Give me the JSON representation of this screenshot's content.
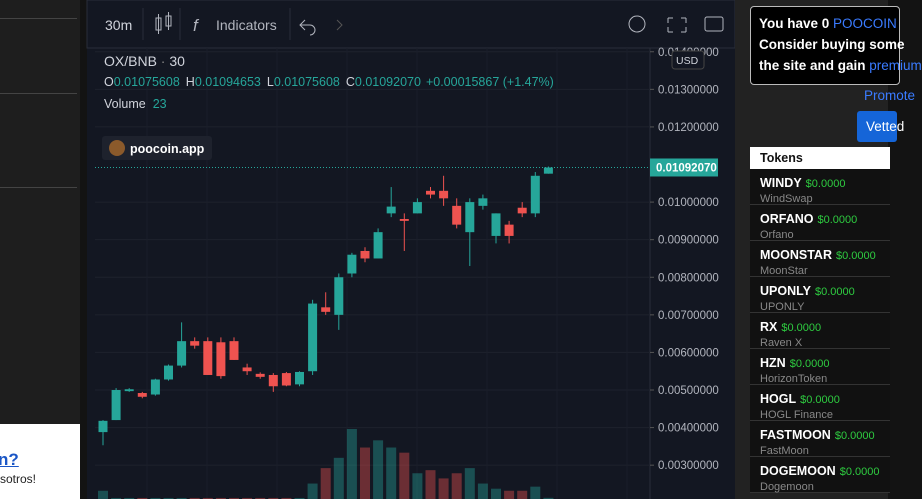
{
  "left": {
    "link": "n?",
    "text": "sotros!"
  },
  "toolbar": {
    "interval": "30m",
    "indicators": "Indicators"
  },
  "chart_data": {
    "type": "candlestick",
    "symbol": "OX/BNB",
    "interval": "30",
    "legend": [
      {
        "key": "O",
        "value": "0.01075608"
      },
      {
        "key": "H",
        "value": "0.01094653"
      },
      {
        "key": "L",
        "value": "0.01075608"
      },
      {
        "key": "C",
        "value": "0.01092070"
      }
    ],
    "change": "+0.00015867 (+1.47%)",
    "volume_label": "Volume",
    "volume_value": 23,
    "watermark": "poocoin.app",
    "currency": "USD",
    "up_color": "#26a69a",
    "down_color": "#ef5350",
    "ylim": [
      0.0021,
      0.0141
    ],
    "yticks": [
      {
        "value": 0.014,
        "label": "0.01400000"
      },
      {
        "value": 0.013,
        "label": "0.01300000"
      },
      {
        "value": 0.012,
        "label": "0.01200000"
      },
      {
        "value": 0.01,
        "label": "0.01000000"
      },
      {
        "value": 0.009,
        "label": "0.00900000"
      },
      {
        "value": 0.008,
        "label": "0.00800000"
      },
      {
        "value": 0.007,
        "label": "0.00700000"
      },
      {
        "value": 0.006,
        "label": "0.00600000"
      },
      {
        "value": 0.005,
        "label": "0.00500000"
      },
      {
        "value": 0.004,
        "label": "0.00400000"
      },
      {
        "value": 0.003,
        "label": "0.00300000"
      }
    ],
    "last_price": {
      "value": 0.0109207,
      "label": "0.01092070"
    },
    "open": [
      0.00388,
      0.0042,
      0.00497,
      0.00492,
      0.00488,
      0.00528,
      0.00565,
      0.0063,
      0.0063,
      0.00627,
      0.0063,
      0.0056,
      0.00543,
      0.0054,
      0.00545,
      0.00515,
      0.0055,
      0.0072,
      0.007,
      0.0081,
      0.0087,
      0.0085,
      0.0097,
      0.00955,
      0.0097,
      0.0103,
      0.0103,
      0.0099,
      0.0092,
      0.0099,
      0.0091,
      0.0094,
      0.00985,
      0.0097,
      0.01075608
    ],
    "high": [
      0.0042,
      0.00505,
      0.00505,
      0.00495,
      0.0053,
      0.00568,
      0.0068,
      0.0064,
      0.0064,
      0.0064,
      0.0064,
      0.0057,
      0.00547,
      0.00545,
      0.00548,
      0.0055,
      0.0074,
      0.0076,
      0.0081,
      0.00865,
      0.0088,
      0.0093,
      0.0104,
      0.0097,
      0.0101,
      0.0104,
      0.0107,
      0.0101,
      0.0101,
      0.0102,
      0.0097,
      0.0095,
      0.01,
      0.0108,
      0.01094653
    ],
    "low": [
      0.00353,
      0.0042,
      0.00495,
      0.00478,
      0.00485,
      0.00525,
      0.0056,
      0.0061,
      0.0054,
      0.0053,
      0.0058,
      0.0054,
      0.0053,
      0.00495,
      0.0051,
      0.0051,
      0.0054,
      0.007,
      0.0066,
      0.008,
      0.0084,
      0.0085,
      0.0096,
      0.0087,
      0.0097,
      0.0101,
      0.0099,
      0.0093,
      0.0083,
      0.0098,
      0.0089,
      0.0089,
      0.0096,
      0.0096,
      0.01075608
    ],
    "close": [
      0.00418,
      0.005,
      0.00502,
      0.00482,
      0.00528,
      0.00565,
      0.0063,
      0.00618,
      0.0054,
      0.00537,
      0.0058,
      0.0055,
      0.00535,
      0.0051,
      0.00512,
      0.00548,
      0.0073,
      0.00708,
      0.008,
      0.0086,
      0.0085,
      0.0092,
      0.00988,
      0.0095,
      0.01,
      0.0102,
      0.0101,
      0.0094,
      0.01,
      0.0101,
      0.0097,
      0.0091,
      0.0097,
      0.0107,
      0.0109207
    ],
    "volume": [
      160,
      20,
      20,
      20,
      20,
      20,
      20,
      20,
      20,
      20,
      20,
      20,
      20,
      20,
      20,
      20,
      300,
      600,
      800,
      1360,
      1000,
      1140,
      1000,
      900,
      500,
      560,
      400,
      500,
      600,
      300,
      200,
      160,
      160,
      240,
      23
    ]
  },
  "sidebar": {
    "notice": {
      "line1": "You have 0 ",
      "token": "POOCOIN",
      "line2": "Consider buying some",
      "line3": "the site and gain ",
      "link": "premium"
    },
    "promote": "Promote",
    "button": "Vetted",
    "tokens_title": "Tokens",
    "tokens": [
      {
        "symbol": "WINDY",
        "price": "$0.0000",
        "name": "WindSwap"
      },
      {
        "symbol": "ORFANO",
        "price": "$0.0000",
        "name": "Orfano"
      },
      {
        "symbol": "MOONSTAR",
        "price": "$0.0000",
        "name": "MoonStar"
      },
      {
        "symbol": "UPONLY",
        "price": "$0.0000",
        "name": "UPONLY"
      },
      {
        "symbol": "RX",
        "price": "$0.0000",
        "name": "Raven X"
      },
      {
        "symbol": "HZN",
        "price": "$0.0000",
        "name": "HorizonToken"
      },
      {
        "symbol": "HOGL",
        "price": "$0.0000",
        "name": "HOGL Finance"
      },
      {
        "symbol": "FASTMOON",
        "price": "$0.0000",
        "name": "FastMoon"
      },
      {
        "symbol": "DOGEMOON",
        "price": "$0.0000",
        "name": "Dogemoon"
      }
    ]
  }
}
